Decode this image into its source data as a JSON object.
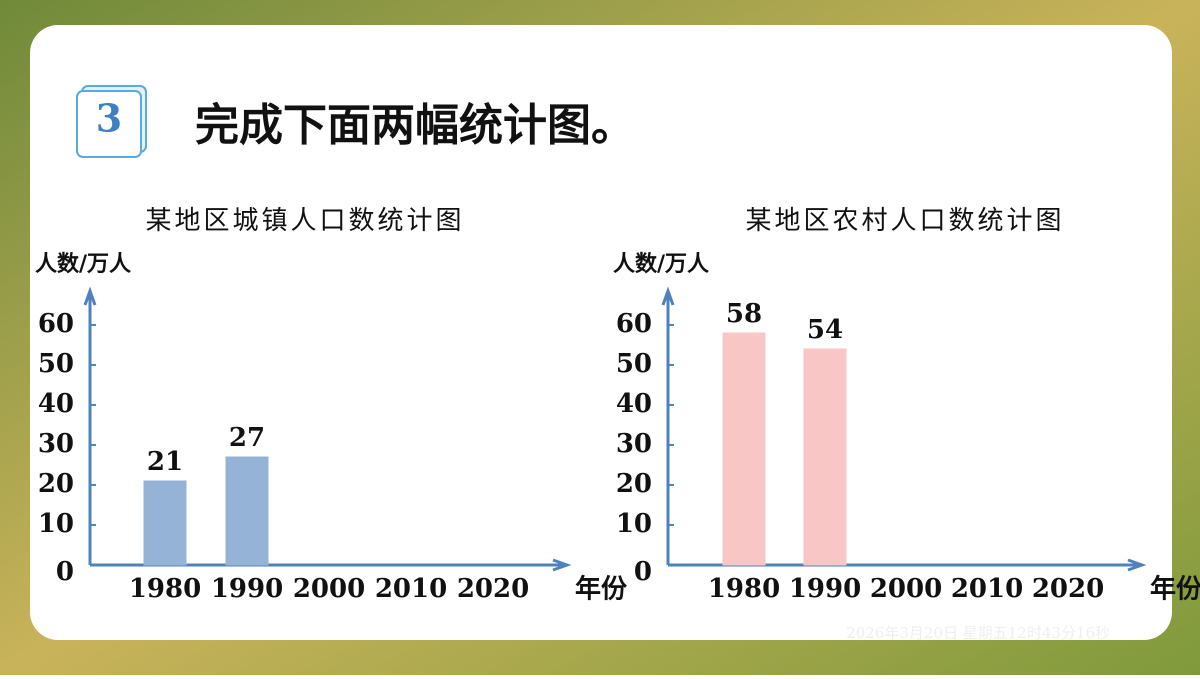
{
  "header": {
    "number": "3",
    "title": "完成下面两幅统计图。"
  },
  "footer": {
    "timestamp": "2026年3月20日 星期五12时43分16秒"
  },
  "chart_data": [
    {
      "type": "bar",
      "title": "某地区城镇人口数统计图",
      "y_label": "人数/万人",
      "x_label": "年份",
      "categories": [
        "1980",
        "1990",
        "2000",
        "2010",
        "2020"
      ],
      "values": [
        21,
        27,
        null,
        null,
        null
      ],
      "color": "#94b3d7",
      "ylim": [
        0,
        67.5
      ],
      "yticks": [
        0,
        10,
        20,
        30,
        40,
        50,
        60
      ]
    },
    {
      "type": "bar",
      "title": "某地区农村人口数统计图",
      "y_label": "人数/万人",
      "x_label": "年份",
      "categories": [
        "1980",
        "1990",
        "2000",
        "2010",
        "2020"
      ],
      "values": [
        58,
        54,
        null,
        null,
        null
      ],
      "color": "#f9c6c6",
      "ylim": [
        0,
        67.5
      ],
      "yticks": [
        0,
        10,
        20,
        30,
        40,
        50,
        60
      ]
    }
  ]
}
